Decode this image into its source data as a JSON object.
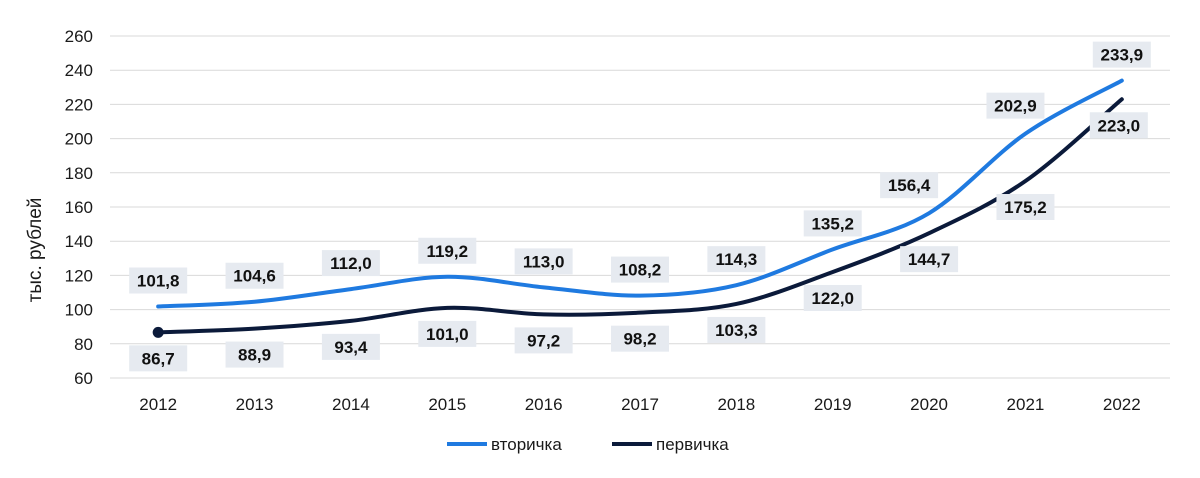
{
  "chart_data": {
    "type": "line",
    "title": "",
    "xlabel": "",
    "ylabel": "тыс. рублей",
    "categories": [
      "2012",
      "2013",
      "2014",
      "2015",
      "2016",
      "2017",
      "2018",
      "2019",
      "2020",
      "2021",
      "2022"
    ],
    "ylim": [
      60,
      260
    ],
    "yticks": [
      60,
      80,
      100,
      120,
      140,
      160,
      180,
      200,
      220,
      240,
      260
    ],
    "grid": true,
    "legend_position": "bottom",
    "series": [
      {
        "name": "вторичка",
        "color": "#1f7ae0",
        "values": [
          101.8,
          104.6,
          112.0,
          119.2,
          113.0,
          108.2,
          114.3,
          135.2,
          156.4,
          202.9,
          233.9
        ],
        "labels": [
          "101,8",
          "104,6",
          "112,0",
          "119,2",
          "113,0",
          "108,2",
          "114,3",
          "135,2",
          "156,4",
          "202,9",
          "233,9"
        ]
      },
      {
        "name": "первичка",
        "color": "#0b1a3a",
        "values": [
          86.7,
          88.9,
          93.4,
          101.0,
          97.2,
          98.2,
          103.3,
          122.0,
          144.7,
          175.2,
          223.0
        ],
        "labels": [
          "86,7",
          "88,9",
          "93,4",
          "101,0",
          "97,2",
          "98,2",
          "103,3",
          "122,0",
          "144,7",
          "175,2",
          "223,0"
        ]
      }
    ]
  },
  "colors": {
    "label_bg": "#e6eaf0",
    "grid": "#d9d9d9"
  }
}
